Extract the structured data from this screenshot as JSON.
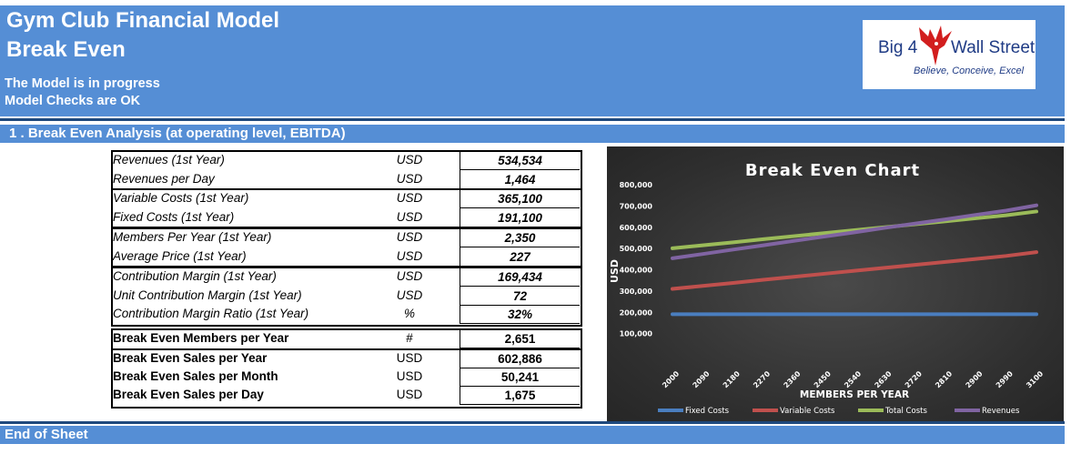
{
  "header": {
    "title_line1": "Gym Club Financial Model",
    "title_line2": "Break Even",
    "status_line1": "The Model is in progress",
    "status_line2": "Model Checks are OK"
  },
  "logo": {
    "text_left": "Big 4",
    "text_right": "Wall Street",
    "tagline": "Believe, Conceive, Excel"
  },
  "section": {
    "title": "1 . Break Even Analysis (at operating level, EBITDA)"
  },
  "table": {
    "rows": [
      {
        "label": "Revenues (1st Year)",
        "unit": "USD",
        "value": "534,534"
      },
      {
        "label": "Revenues per Day",
        "unit": "USD",
        "value": "1,464"
      },
      {
        "label": "Variable Costs (1st Year)",
        "unit": "USD",
        "value": "365,100"
      },
      {
        "label": "Fixed Costs (1st Year)",
        "unit": "USD",
        "value": "191,100"
      },
      {
        "label": "Members Per Year (1st Year)",
        "unit": "USD",
        "value": "2,350"
      },
      {
        "label": "Average Price (1st Year)",
        "unit": "USD",
        "value": "227"
      },
      {
        "label": "Contribution Margin (1st Year)",
        "unit": "USD",
        "value": "169,434"
      },
      {
        "label": "Unit Contribution Margin (1st Year)",
        "unit": "USD",
        "value": "72"
      },
      {
        "label": "Contribution Margin Ratio (1st Year)",
        "unit": "%",
        "value": "32%"
      },
      {
        "label": "Break Even Members per Year",
        "unit": "#",
        "value": "2,651"
      },
      {
        "label": "Break Even Sales per Year",
        "unit": "USD",
        "value": "602,886"
      },
      {
        "label": "Break Even Sales per Month",
        "unit": "USD",
        "value": "50,241"
      },
      {
        "label": "Break Even Sales per Day",
        "unit": "USD",
        "value": "1,675"
      }
    ]
  },
  "footer": {
    "text": "End of Sheet"
  },
  "chart_data": {
    "type": "line",
    "title": "Break Even Chart",
    "xlabel": "MEMBERS PER YEAR",
    "ylabel": "USD",
    "x": [
      2000,
      2090,
      2180,
      2270,
      2360,
      2450,
      2540,
      2630,
      2720,
      2810,
      2900,
      2990,
      3100
    ],
    "ylim": [
      0,
      800000
    ],
    "yticks": [
      "100,000",
      "200,000",
      "300,000",
      "400,000",
      "500,000",
      "600,000",
      "700,000",
      "800,000"
    ],
    "ytick_values": [
      100000,
      200000,
      300000,
      400000,
      500000,
      600000,
      700000,
      800000
    ],
    "grid": false,
    "legend": "bottom",
    "series": [
      {
        "name": "Fixed Costs",
        "color": "#4a7ebf",
        "values": [
          191100,
          191100,
          191100,
          191100,
          191100,
          191100,
          191100,
          191100,
          191100,
          191100,
          191100,
          191100,
          191100
        ]
      },
      {
        "name": "Variable Costs",
        "color": "#c0504d",
        "values": [
          310000,
          324000,
          338000,
          353000,
          367000,
          381000,
          395000,
          409000,
          423000,
          437000,
          451000,
          465000,
          483000
        ]
      },
      {
        "name": "Total Costs",
        "color": "#9bbb59",
        "values": [
          501000,
          515000,
          529000,
          544000,
          558000,
          572000,
          586000,
          600000,
          614000,
          628000,
          642000,
          656000,
          674000
        ]
      },
      {
        "name": "Revenues",
        "color": "#8064a2",
        "values": [
          454000,
          474000,
          495000,
          515000,
          536000,
          556000,
          576000,
          597000,
          617000,
          637000,
          658000,
          678000,
          703000
        ]
      }
    ]
  }
}
